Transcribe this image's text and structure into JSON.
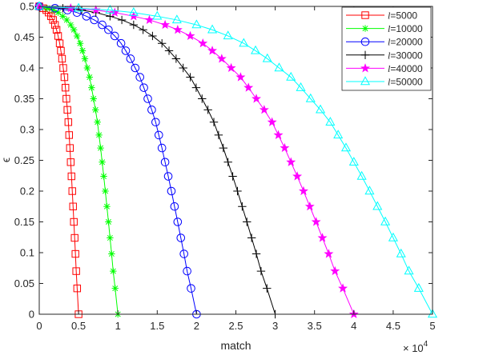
{
  "chart_data": {
    "type": "line",
    "xlabel": "match",
    "ylabel": "ϵ",
    "x_exponent_label": {
      "base": "× 10",
      "exp": "4"
    },
    "xlim": [
      0,
      50000
    ],
    "ylim": [
      0,
      0.5
    ],
    "x_ticks": [
      0,
      5000,
      10000,
      15000,
      20000,
      25000,
      30000,
      35000,
      40000,
      45000,
      50000
    ],
    "x_tick_labels": [
      "0",
      "0.5",
      "1",
      "1.5",
      "2",
      "2.5",
      "3",
      "3.5",
      "4",
      "4.5",
      "5"
    ],
    "y_ticks": [
      0,
      0.05,
      0.1,
      0.15,
      0.2,
      0.25,
      0.3,
      0.35,
      0.4,
      0.45,
      0.5
    ],
    "y_tick_labels": [
      "0",
      "0.05",
      "0.1",
      "0.15",
      "0.2",
      "0.25",
      "0.3",
      "0.35",
      "0.4",
      "0.45",
      "0.5"
    ],
    "grid": false,
    "legend_position": "top-right",
    "legend_prefix": "l",
    "eps_values": [
      0.5,
      0.497,
      0.494,
      0.49,
      0.484,
      0.478,
      0.47,
      0.462,
      0.452,
      0.44,
      0.428,
      0.415,
      0.4,
      0.385,
      0.368,
      0.35,
      0.332,
      0.312,
      0.291,
      0.27,
      0.247,
      0.224,
      0.2,
      0.175,
      0.15,
      0.124,
      0.098,
      0.07,
      0.042,
      0
    ],
    "series": [
      {
        "name": "=5000",
        "color": "#ff0000",
        "marker": "square",
        "x": [
          0,
          500,
          900,
          1200,
          1500,
          1750,
          2000,
          2200,
          2400,
          2600,
          2750,
          2900,
          3050,
          3200,
          3330,
          3450,
          3580,
          3700,
          3800,
          3900,
          4000,
          4100,
          4200,
          4300,
          4400,
          4500,
          4600,
          4700,
          4820,
          5000
        ]
      },
      {
        "name": "=10000",
        "color": "#00ff00",
        "marker": "asterisk",
        "x": [
          0,
          1000,
          1800,
          2400,
          3000,
          3500,
          4000,
          4400,
          4800,
          5200,
          5500,
          5800,
          6100,
          6400,
          6650,
          6900,
          7150,
          7400,
          7600,
          7800,
          8000,
          8200,
          8400,
          8600,
          8800,
          9000,
          9200,
          9400,
          9650,
          10000
        ]
      },
      {
        "name": "=20000",
        "color": "#0000ff",
        "marker": "circle",
        "x": [
          0,
          2000,
          3600,
          4800,
          6000,
          7000,
          8000,
          8800,
          9600,
          10400,
          11000,
          11600,
          12200,
          12800,
          13300,
          13800,
          14300,
          14800,
          15200,
          15600,
          16000,
          16400,
          16800,
          17200,
          17600,
          18000,
          18400,
          18800,
          19300,
          20000
        ]
      },
      {
        "name": "=30000",
        "color": "#000000",
        "marker": "plus",
        "x": [
          0,
          3000,
          5400,
          7200,
          9000,
          10500,
          12000,
          13200,
          14400,
          15600,
          16500,
          17400,
          18300,
          19200,
          19950,
          20700,
          21450,
          22200,
          22800,
          23400,
          24000,
          24600,
          25200,
          25800,
          26400,
          27000,
          27600,
          28200,
          28950,
          30000
        ]
      },
      {
        "name": "=40000",
        "color": "#ff00ff",
        "marker": "star",
        "x": [
          0,
          4000,
          7200,
          9600,
          12000,
          14000,
          16000,
          17600,
          19200,
          20800,
          22000,
          23200,
          24400,
          25600,
          26600,
          27600,
          28600,
          29600,
          30400,
          31200,
          32000,
          32800,
          33600,
          34400,
          35200,
          36000,
          36800,
          37600,
          38600,
          40000
        ]
      },
      {
        "name": "=50000",
        "color": "#00ffff",
        "marker": "triangle",
        "x": [
          0,
          5000,
          9000,
          12000,
          15000,
          17500,
          20000,
          22000,
          24000,
          26000,
          27500,
          29000,
          30500,
          32000,
          33250,
          34500,
          35750,
          37000,
          38000,
          39000,
          40000,
          41000,
          42000,
          43000,
          44000,
          45000,
          46000,
          47000,
          48250,
          50000
        ]
      }
    ]
  }
}
